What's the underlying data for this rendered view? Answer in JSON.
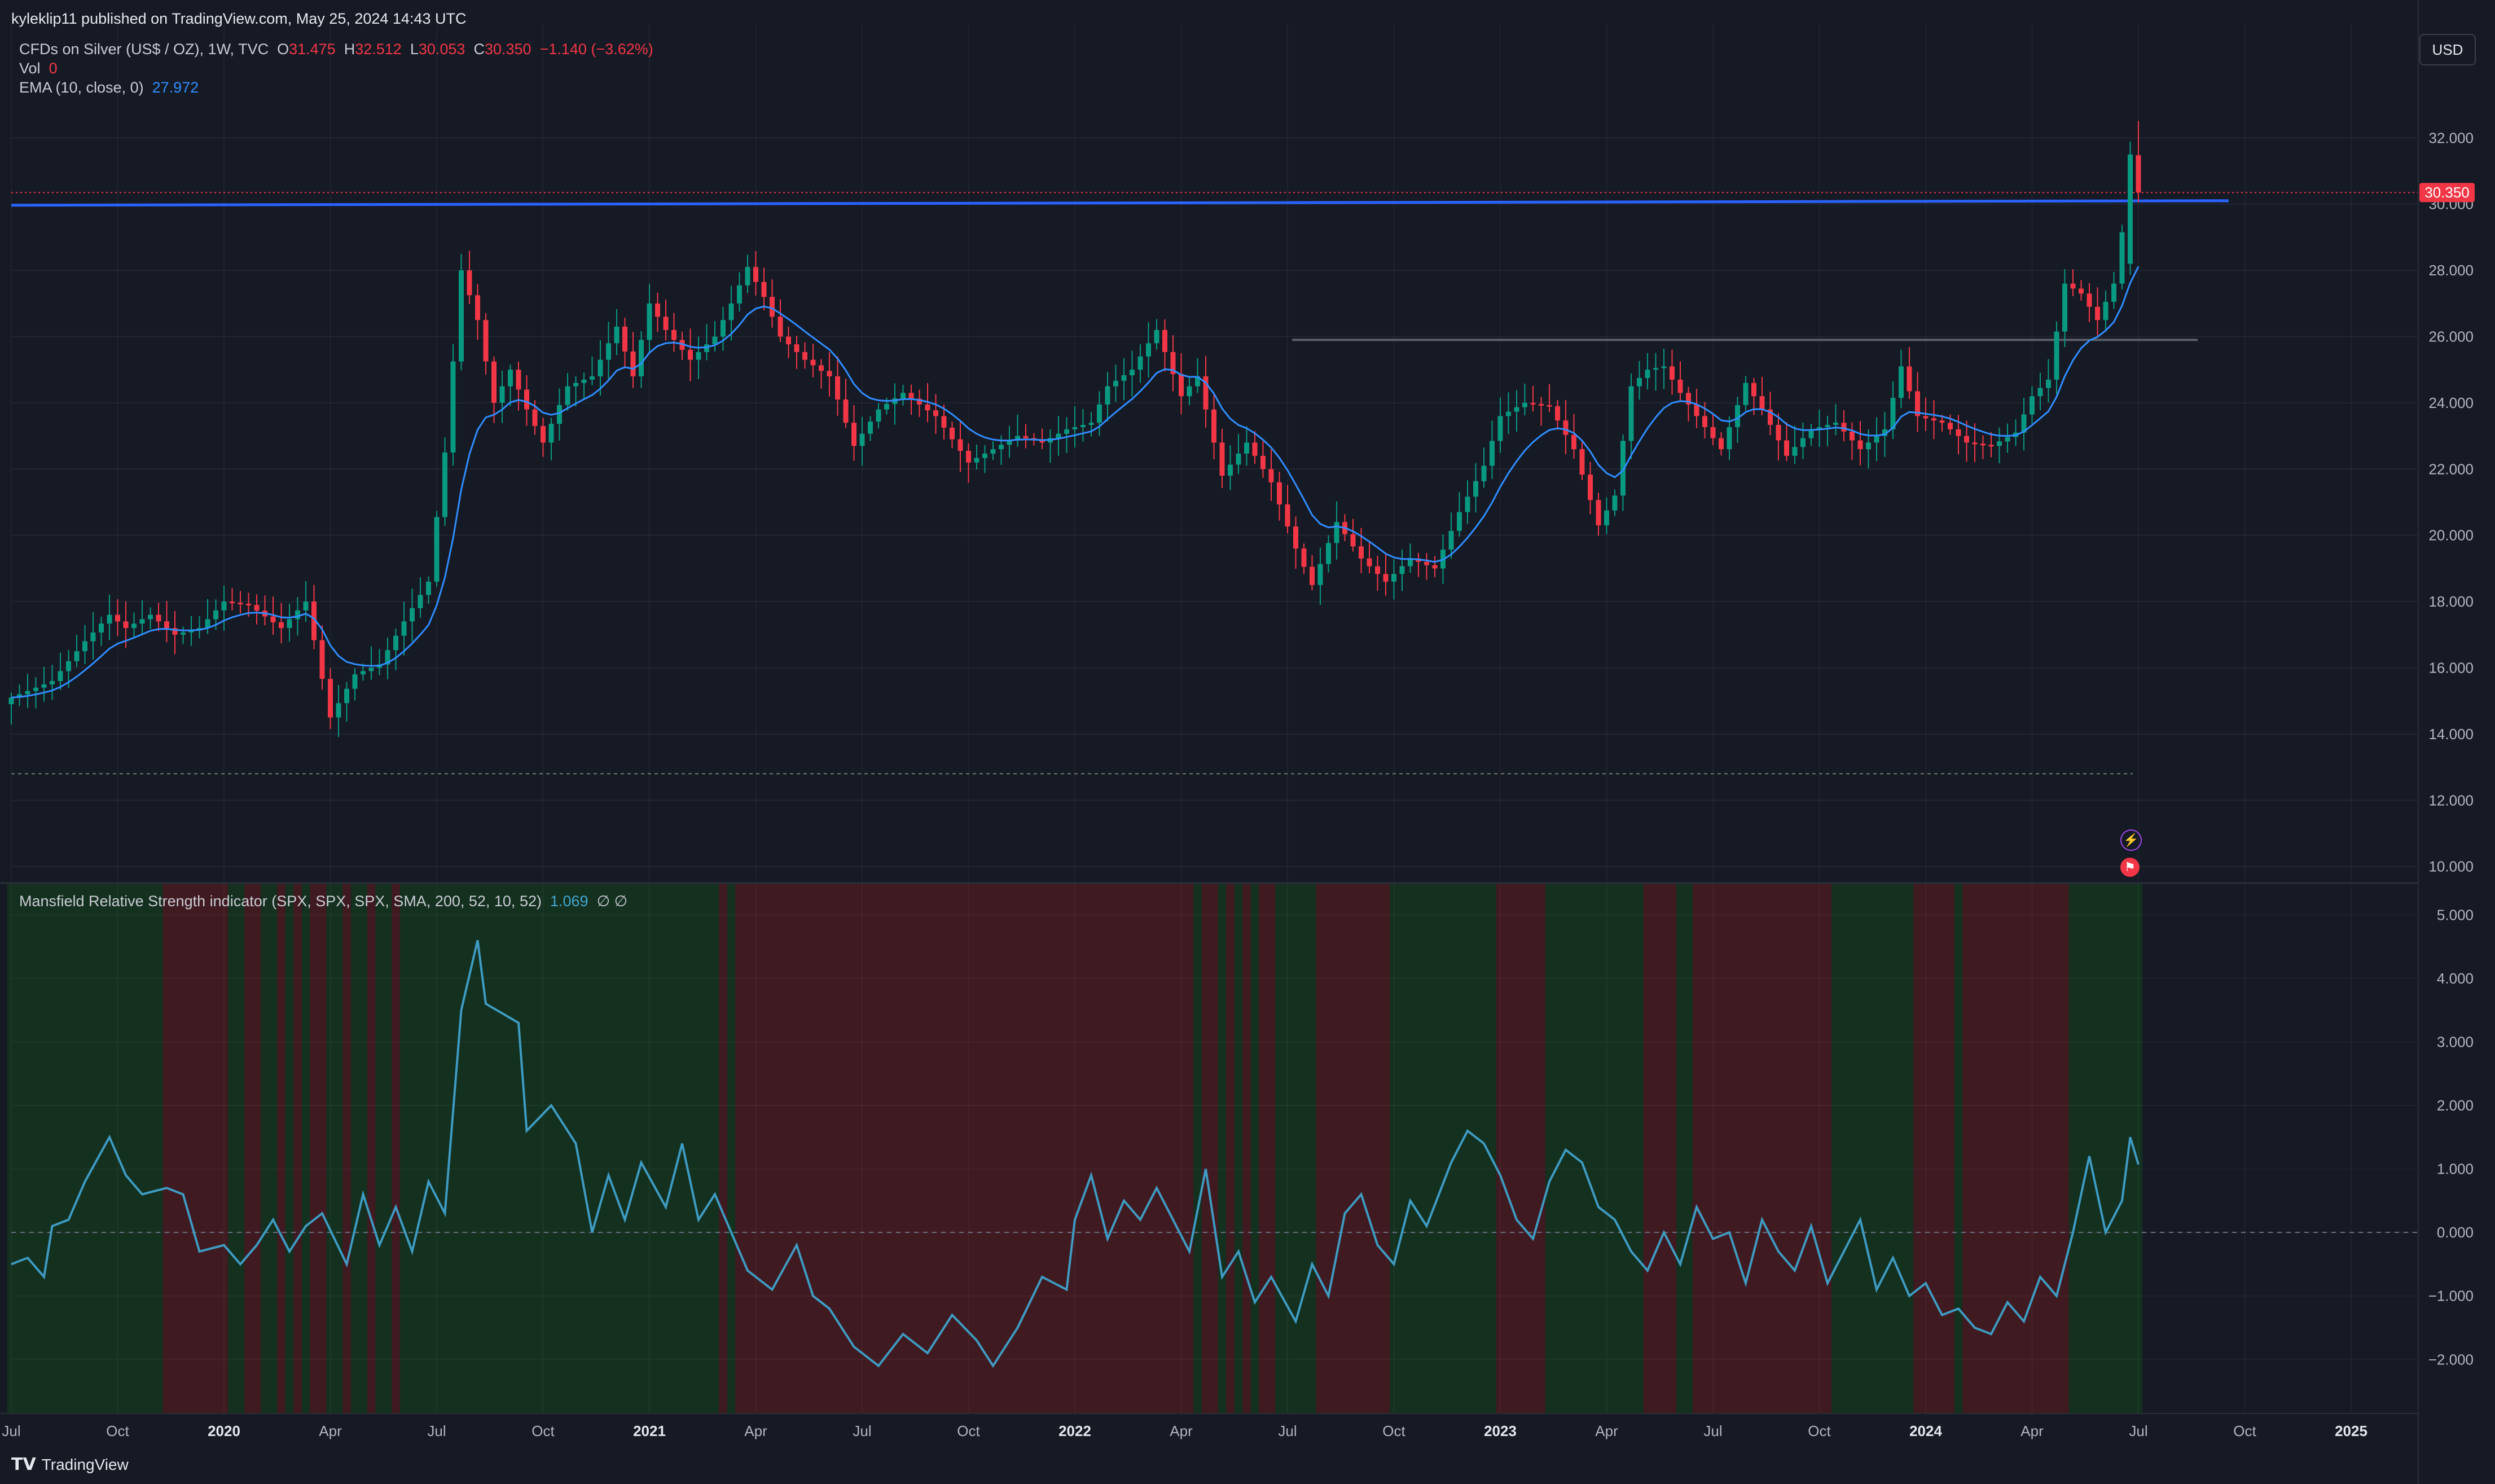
{
  "publisher": "kyleklip11 published on TradingView.com, May 25, 2024 14:43 UTC",
  "brand": "TradingView",
  "currency_button": "USD",
  "legend": {
    "symbol": "CFDs on Silver (US$ / OZ), 1W, TVC",
    "o_label": "O",
    "o": "31.475",
    "h_label": "H",
    "h": "32.512",
    "l_label": "L",
    "l": "30.053",
    "c_label": "C",
    "c": "30.350",
    "change": "−1.140 (−3.62%)",
    "vol_label": "Vol",
    "vol": "0",
    "ema_label": "EMA (10, close, 0)",
    "ema": "27.972",
    "mrs_label": "Mansfield Relative Strength indicator (SPX, SPX, SPX, SMA, 200, 52, 10, 52)",
    "mrs": "1.069",
    "mrs_extra": "∅  ∅"
  },
  "colors": {
    "background": "#161a25",
    "up": "#089981",
    "down": "#f23645",
    "ema": "#2f8dff",
    "resistance": "#2962ff",
    "mrs_line": "#3e9bc2",
    "bg_green": "#14301f",
    "bg_red": "#401a21"
  },
  "chart_data": [
    {
      "type": "candlestick",
      "title": "CFDs on Silver (US$ / OZ), 1W, TVC",
      "ylim": [
        9.5,
        34.8
      ],
      "y_ticks": [
        "10.000",
        "12.000",
        "14.000",
        "16.000",
        "18.000",
        "20.000",
        "22.000",
        "24.000",
        "26.000",
        "28.000",
        "30.000",
        "32.000"
      ],
      "last_price_label": "30.350",
      "x_tick_labels": [
        "Jul",
        "Oct",
        "2020",
        "Apr",
        "Jul",
        "Oct",
        "2021",
        "Apr",
        "Jul",
        "Oct",
        "2022",
        "Apr",
        "Jul",
        "Oct",
        "2023",
        "Apr",
        "Jul",
        "Oct",
        "2024",
        "Apr",
        "Jul",
        "Oct",
        "2025"
      ],
      "x_tick_bold": [
        false,
        false,
        true,
        false,
        false,
        false,
        true,
        false,
        false,
        false,
        true,
        false,
        false,
        false,
        true,
        false,
        false,
        false,
        true,
        false,
        false,
        false,
        true
      ],
      "x_tick_week": [
        0,
        13,
        26,
        39,
        52,
        65,
        78,
        91,
        104,
        117,
        130,
        143,
        156,
        169,
        182,
        195,
        208,
        221,
        234,
        247,
        260,
        273,
        286
      ],
      "close_anchors": [
        [
          0,
          15.1
        ],
        [
          5,
          15.6
        ],
        [
          9,
          16.8
        ],
        [
          12,
          17.6
        ],
        [
          14,
          17.2
        ],
        [
          17,
          17.6
        ],
        [
          20,
          17.0
        ],
        [
          23,
          17.2
        ],
        [
          26,
          18.0
        ],
        [
          29,
          17.9
        ],
        [
          33,
          17.2
        ],
        [
          36,
          18.0
        ],
        [
          39,
          14.5
        ],
        [
          42,
          15.8
        ],
        [
          45,
          16.1
        ],
        [
          48,
          17.4
        ],
        [
          51,
          18.6
        ],
        [
          53,
          22.5
        ],
        [
          55,
          28.0
        ],
        [
          57,
          26.5
        ],
        [
          59,
          24.0
        ],
        [
          61,
          25.0
        ],
        [
          63,
          23.8
        ],
        [
          65,
          22.8
        ],
        [
          68,
          24.5
        ],
        [
          71,
          24.8
        ],
        [
          74,
          26.3
        ],
        [
          76,
          24.8
        ],
        [
          78,
          27.0
        ],
        [
          80,
          26.2
        ],
        [
          83,
          25.3
        ],
        [
          86,
          26.0
        ],
        [
          88,
          27.0
        ],
        [
          90,
          28.1
        ],
        [
          92,
          27.2
        ],
        [
          94,
          26.0
        ],
        [
          97,
          25.3
        ],
        [
          100,
          24.8
        ],
        [
          103,
          22.7
        ],
        [
          106,
          23.8
        ],
        [
          109,
          24.3
        ],
        [
          113,
          23.6
        ],
        [
          117,
          22.2
        ],
        [
          120,
          22.6
        ],
        [
          123,
          23.0
        ],
        [
          126,
          22.8
        ],
        [
          129,
          23.2
        ],
        [
          132,
          23.4
        ],
        [
          134,
          24.5
        ],
        [
          137,
          25.0
        ],
        [
          140,
          26.2
        ],
        [
          143,
          24.2
        ],
        [
          145,
          24.8
        ],
        [
          148,
          21.8
        ],
        [
          151,
          22.8
        ],
        [
          154,
          21.6
        ],
        [
          157,
          19.6
        ],
        [
          159,
          18.5
        ],
        [
          162,
          20.4
        ],
        [
          165,
          19.3
        ],
        [
          168,
          18.6
        ],
        [
          171,
          19.3
        ],
        [
          174,
          19.0
        ],
        [
          177,
          20.7
        ],
        [
          180,
          22.1
        ],
        [
          182,
          23.6
        ],
        [
          185,
          24.0
        ],
        [
          188,
          23.9
        ],
        [
          191,
          22.6
        ],
        [
          194,
          20.3
        ],
        [
          196,
          21.2
        ],
        [
          198,
          24.5
        ],
        [
          200,
          25.0
        ],
        [
          202,
          25.1
        ],
        [
          204,
          24.3
        ],
        [
          206,
          23.6
        ],
        [
          209,
          22.6
        ],
        [
          212,
          24.6
        ],
        [
          214,
          23.8
        ],
        [
          217,
          22.4
        ],
        [
          220,
          23.2
        ],
        [
          223,
          23.4
        ],
        [
          226,
          22.6
        ],
        [
          229,
          23.2
        ],
        [
          231,
          25.1
        ],
        [
          233,
          23.6
        ],
        [
          236,
          23.4
        ],
        [
          239,
          22.8
        ],
        [
          242,
          22.7
        ],
        [
          245,
          23.1
        ],
        [
          247,
          24.2
        ],
        [
          249,
          24.7
        ],
        [
          251,
          27.6
        ],
        [
          253,
          27.3
        ],
        [
          255,
          26.5
        ],
        [
          257,
          27.6
        ],
        [
          259,
          30.7
        ],
        [
          260,
          30.35
        ]
      ],
      "ema_last": 27.972,
      "resistance_level": 30.0,
      "support_level": 25.9,
      "low_level": 12.8
    },
    {
      "type": "line",
      "title": "Mansfield Relative Strength indicator (SPX, SPX, SPX, SMA, 200, 52, 10, 52)",
      "ylim": [
        -2.85,
        5.5
      ],
      "y_ticks": [
        "−2.000",
        "−1.000",
        "0.000",
        "1.000",
        "2.000",
        "3.000",
        "4.000",
        "5.000"
      ],
      "zero_line": 0.0,
      "last_value": 1.069,
      "anchors": [
        [
          0,
          -0.5
        ],
        [
          2,
          -0.4
        ],
        [
          4,
          -0.7
        ],
        [
          5,
          0.1
        ],
        [
          7,
          0.2
        ],
        [
          9,
          0.8
        ],
        [
          12,
          1.5
        ],
        [
          14,
          0.9
        ],
        [
          16,
          0.6
        ],
        [
          19,
          0.7
        ],
        [
          21,
          0.6
        ],
        [
          23,
          -0.3
        ],
        [
          26,
          -0.2
        ],
        [
          28,
          -0.5
        ],
        [
          30,
          -0.2
        ],
        [
          32,
          0.2
        ],
        [
          34,
          -0.3
        ],
        [
          36,
          0.1
        ],
        [
          38,
          0.3
        ],
        [
          41,
          -0.5
        ],
        [
          43,
          0.6
        ],
        [
          45,
          -0.2
        ],
        [
          47,
          0.4
        ],
        [
          49,
          -0.3
        ],
        [
          51,
          0.8
        ],
        [
          53,
          0.3
        ],
        [
          55,
          3.5
        ],
        [
          57,
          4.6
        ],
        [
          58,
          3.6
        ],
        [
          62,
          3.3
        ],
        [
          63,
          1.6
        ],
        [
          66,
          2.0
        ],
        [
          69,
          1.4
        ],
        [
          71,
          0.0
        ],
        [
          73,
          0.9
        ],
        [
          75,
          0.2
        ],
        [
          77,
          1.1
        ],
        [
          80,
          0.4
        ],
        [
          82,
          1.4
        ],
        [
          84,
          0.2
        ],
        [
          86,
          0.6
        ],
        [
          88,
          0.0
        ],
        [
          90,
          -0.6
        ],
        [
          93,
          -0.9
        ],
        [
          96,
          -0.2
        ],
        [
          98,
          -1.0
        ],
        [
          100,
          -1.2
        ],
        [
          103,
          -1.8
        ],
        [
          106,
          -2.1
        ],
        [
          109,
          -1.6
        ],
        [
          112,
          -1.9
        ],
        [
          115,
          -1.3
        ],
        [
          118,
          -1.7
        ],
        [
          120,
          -2.1
        ],
        [
          123,
          -1.5
        ],
        [
          126,
          -0.7
        ],
        [
          129,
          -0.9
        ],
        [
          130,
          0.2
        ],
        [
          132,
          0.9
        ],
        [
          134,
          -0.1
        ],
        [
          136,
          0.5
        ],
        [
          138,
          0.2
        ],
        [
          140,
          0.7
        ],
        [
          142,
          0.2
        ],
        [
          144,
          -0.3
        ],
        [
          146,
          1.0
        ],
        [
          148,
          -0.7
        ],
        [
          150,
          -0.3
        ],
        [
          152,
          -1.1
        ],
        [
          154,
          -0.7
        ],
        [
          157,
          -1.4
        ],
        [
          159,
          -0.5
        ],
        [
          161,
          -1.0
        ],
        [
          163,
          0.3
        ],
        [
          165,
          0.6
        ],
        [
          167,
          -0.2
        ],
        [
          169,
          -0.5
        ],
        [
          171,
          0.5
        ],
        [
          173,
          0.1
        ],
        [
          176,
          1.1
        ],
        [
          178,
          1.6
        ],
        [
          180,
          1.4
        ],
        [
          182,
          0.9
        ],
        [
          184,
          0.2
        ],
        [
          186,
          -0.1
        ],
        [
          188,
          0.8
        ],
        [
          190,
          1.3
        ],
        [
          192,
          1.1
        ],
        [
          194,
          0.4
        ],
        [
          196,
          0.2
        ],
        [
          198,
          -0.3
        ],
        [
          200,
          -0.6
        ],
        [
          202,
          0.0
        ],
        [
          204,
          -0.5
        ],
        [
          206,
          0.4
        ],
        [
          208,
          -0.1
        ],
        [
          210,
          0.0
        ],
        [
          212,
          -0.8
        ],
        [
          214,
          0.2
        ],
        [
          216,
          -0.3
        ],
        [
          218,
          -0.6
        ],
        [
          220,
          0.1
        ],
        [
          222,
          -0.8
        ],
        [
          224,
          -0.3
        ],
        [
          226,
          0.2
        ],
        [
          228,
          -0.9
        ],
        [
          230,
          -0.4
        ],
        [
          232,
          -1.0
        ],
        [
          234,
          -0.8
        ],
        [
          236,
          -1.3
        ],
        [
          238,
          -1.2
        ],
        [
          240,
          -1.5
        ],
        [
          242,
          -1.6
        ],
        [
          244,
          -1.1
        ],
        [
          246,
          -1.4
        ],
        [
          248,
          -0.7
        ],
        [
          250,
          -1.0
        ],
        [
          252,
          0.0
        ],
        [
          254,
          1.2
        ],
        [
          255,
          0.6
        ],
        [
          256,
          0.0
        ],
        [
          258,
          0.5
        ],
        [
          259,
          1.5
        ],
        [
          260,
          1.069
        ]
      ],
      "zones_red": [
        [
          19,
          27
        ],
        [
          29,
          31
        ],
        [
          33,
          34
        ],
        [
          35,
          36
        ],
        [
          37,
          39
        ],
        [
          41,
          42
        ],
        [
          44,
          45
        ],
        [
          47,
          48
        ],
        [
          87,
          88
        ],
        [
          89,
          145
        ],
        [
          146,
          148
        ],
        [
          149,
          150
        ],
        [
          151,
          152
        ],
        [
          153,
          155
        ],
        [
          160,
          169
        ],
        [
          182,
          188
        ],
        [
          200,
          204
        ],
        [
          206,
          223
        ],
        [
          233,
          238
        ],
        [
          239,
          252
        ]
      ],
      "zones_green": [
        [
          0,
          19
        ],
        [
          27,
          29
        ],
        [
          31,
          33
        ],
        [
          34,
          35
        ],
        [
          36,
          37
        ],
        [
          39,
          41
        ],
        [
          42,
          44
        ],
        [
          45,
          47
        ],
        [
          48,
          87
        ],
        [
          88,
          89
        ],
        [
          145,
          146
        ],
        [
          148,
          149
        ],
        [
          150,
          151
        ],
        [
          152,
          153
        ],
        [
          155,
          160
        ],
        [
          169,
          182
        ],
        [
          188,
          200
        ],
        [
          204,
          206
        ],
        [
          223,
          233
        ],
        [
          238,
          239
        ],
        [
          252,
          261
        ]
      ]
    }
  ]
}
